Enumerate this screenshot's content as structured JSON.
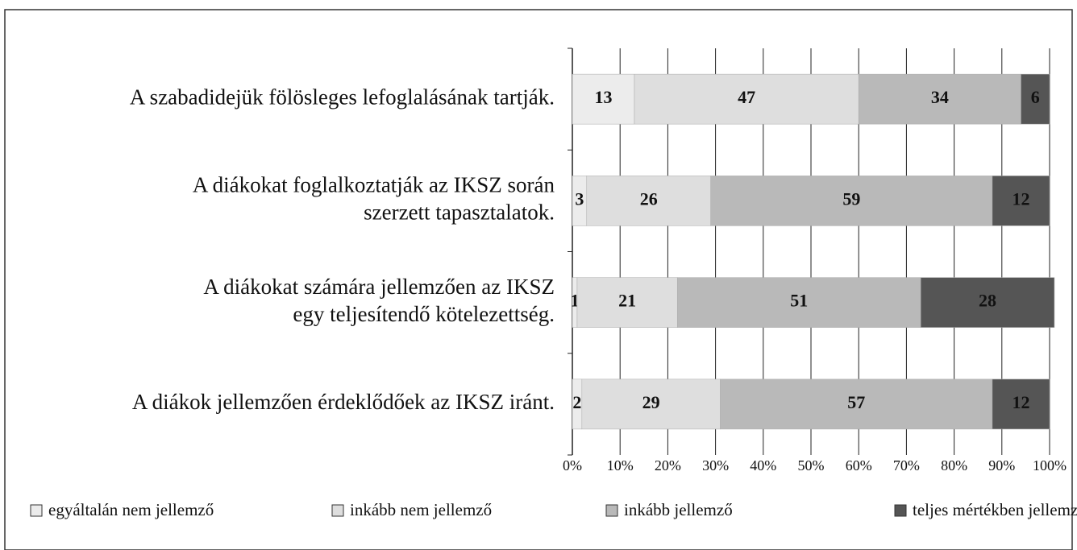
{
  "chart_data": {
    "type": "stacked_barh",
    "categories": [
      [
        "A szabadidejük fölösleges lefoglalásának tartják."
      ],
      [
        "A diákokat foglalkoztatják az IKSZ során",
        "szerzett tapasztalatok."
      ],
      [
        "A diákokat számára jellemzően az IKSZ",
        "egy teljesítendő kötelezettség."
      ],
      [
        "A diákok jellemzően érdeklődőek az IKSZ iránt."
      ]
    ],
    "series": [
      {
        "name": "egyáltalán nem jellemző",
        "color": "#ececec",
        "values": [
          13,
          3,
          1,
          2
        ]
      },
      {
        "name": "inkább nem jellemző",
        "color": "#dedede",
        "values": [
          47,
          26,
          21,
          29
        ]
      },
      {
        "name": "inkább jellemző",
        "color": "#b9b9b9",
        "values": [
          34,
          59,
          51,
          57
        ]
      },
      {
        "name": "teljes mértékben jellemző",
        "color": "#555555",
        "values": [
          6,
          12,
          28,
          12
        ]
      }
    ],
    "xlim": [
      0,
      100
    ],
    "xticks": [
      {
        "value": 0,
        "label": "0%"
      },
      {
        "value": 10,
        "label": "10%"
      },
      {
        "value": 20,
        "label": "20%"
      },
      {
        "value": 30,
        "label": "30%"
      },
      {
        "value": 40,
        "label": "40%"
      },
      {
        "value": 50,
        "label": "50%"
      },
      {
        "value": 60,
        "label": "60%"
      },
      {
        "value": 70,
        "label": "70%"
      },
      {
        "value": 80,
        "label": "80%"
      },
      {
        "value": 90,
        "label": "90%"
      },
      {
        "value": 100,
        "label": "100%"
      }
    ],
    "grid": true,
    "legend": "bottom"
  }
}
